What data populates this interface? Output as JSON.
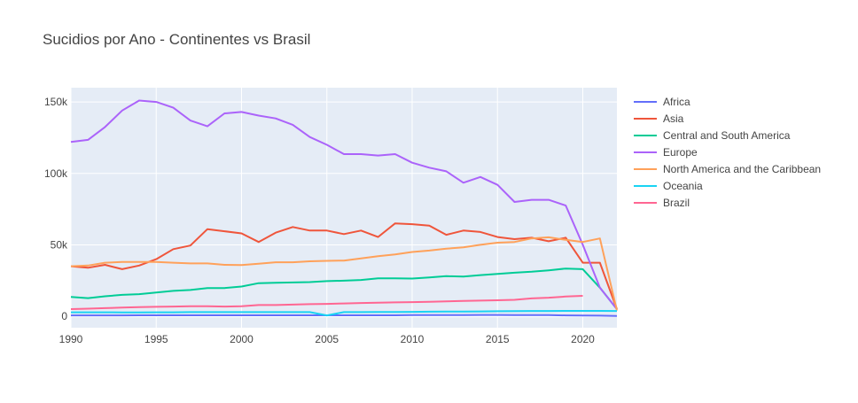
{
  "chart_data": {
    "type": "line",
    "title": "Sucidios por Ano - Continentes vs Brasil",
    "xlabel": "",
    "ylabel": "",
    "xlim": [
      1990,
      2022
    ],
    "ylim": [
      -8000,
      160000
    ],
    "x_ticks": [
      1990,
      1995,
      2000,
      2005,
      2010,
      2015,
      2020
    ],
    "y_ticks": [
      0,
      50000,
      100000,
      150000
    ],
    "y_tick_labels": [
      "0",
      "50k",
      "100k",
      "150k"
    ],
    "grid": true,
    "plot_background": "#e5ecf6",
    "legend_position": "right",
    "series": [
      {
        "name": "Africa",
        "color": "#636efa",
        "x": [
          1990,
          1991,
          1992,
          1993,
          1994,
          1995,
          1996,
          1997,
          1998,
          1999,
          2000,
          2001,
          2002,
          2003,
          2004,
          2005,
          2006,
          2007,
          2008,
          2009,
          2010,
          2011,
          2012,
          2013,
          2014,
          2015,
          2016,
          2017,
          2018,
          2019,
          2020,
          2021,
          2022
        ],
        "values": [
          600,
          600,
          600,
          600,
          650,
          650,
          650,
          700,
          700,
          700,
          700,
          700,
          700,
          700,
          700,
          700,
          700,
          700,
          700,
          700,
          800,
          800,
          800,
          800,
          900,
          900,
          800,
          800,
          800,
          600,
          500,
          400,
          200
        ]
      },
      {
        "name": "Asia",
        "color": "#ef553b",
        "x": [
          1990,
          1991,
          1992,
          1993,
          1994,
          1995,
          1996,
          1997,
          1998,
          1999,
          2000,
          2001,
          2002,
          2003,
          2004,
          2005,
          2006,
          2007,
          2008,
          2009,
          2010,
          2011,
          2012,
          2013,
          2014,
          2015,
          2016,
          2017,
          2018,
          2019,
          2020,
          2021,
          2022
        ],
        "values": [
          35000,
          34000,
          36000,
          33000,
          35500,
          40000,
          47000,
          49500,
          61000,
          59500,
          58000,
          52000,
          58500,
          62500,
          60000,
          60000,
          57500,
          60000,
          55500,
          65000,
          64500,
          63500,
          57000,
          60000,
          59000,
          55500,
          54000,
          55000,
          52500,
          55000,
          37500,
          37500,
          5000
        ]
      },
      {
        "name": "Central and South America",
        "color": "#00cc96",
        "x": [
          1990,
          1991,
          1992,
          1993,
          1994,
          1995,
          1996,
          1997,
          1998,
          1999,
          2000,
          2001,
          2002,
          2003,
          2004,
          2005,
          2006,
          2007,
          2008,
          2009,
          2010,
          2011,
          2012,
          2013,
          2014,
          2015,
          2016,
          2017,
          2018,
          2019,
          2020,
          2021,
          2022
        ],
        "values": [
          13500,
          12700,
          14000,
          15000,
          15500,
          16600,
          17800,
          18400,
          19800,
          19800,
          20800,
          23200,
          23500,
          23700,
          23900,
          24600,
          24900,
          25400,
          26500,
          26500,
          26400,
          27200,
          28100,
          27800,
          28800,
          29700,
          30500,
          31200,
          32200,
          33400,
          33000,
          20000,
          5000
        ]
      },
      {
        "name": "Europe",
        "color": "#ab63fa",
        "x": [
          1990,
          1991,
          1992,
          1993,
          1994,
          1995,
          1996,
          1997,
          1998,
          1999,
          2000,
          2001,
          2002,
          2003,
          2004,
          2005,
          2006,
          2007,
          2008,
          2009,
          2010,
          2011,
          2012,
          2013,
          2014,
          2015,
          2016,
          2017,
          2018,
          2019,
          2020,
          2021,
          2022
        ],
        "values": [
          122000,
          123500,
          132500,
          144000,
          151000,
          150000,
          146000,
          137000,
          133000,
          142000,
          143000,
          140500,
          138500,
          134000,
          125500,
          120000,
          113500,
          113500,
          112500,
          113500,
          107500,
          104000,
          101500,
          93500,
          97500,
          92000,
          80000,
          81500,
          81500,
          77500,
          50000,
          20000,
          5000
        ]
      },
      {
        "name": "North America and the Caribbean",
        "color": "#ffa15a",
        "x": [
          1990,
          1991,
          1992,
          1993,
          1994,
          1995,
          1996,
          1997,
          1998,
          1999,
          2000,
          2001,
          2002,
          2003,
          2004,
          2005,
          2006,
          2007,
          2008,
          2009,
          2010,
          2011,
          2012,
          2013,
          2014,
          2015,
          2016,
          2017,
          2018,
          2019,
          2020,
          2021,
          2022
        ],
        "values": [
          35000,
          35500,
          37500,
          38000,
          38000,
          38000,
          37500,
          37000,
          37000,
          36000,
          35800,
          36800,
          37800,
          37800,
          38500,
          38800,
          39000,
          40500,
          42000,
          43300,
          45000,
          46000,
          47300,
          48300,
          50000,
          51500,
          52000,
          54500,
          55300,
          53500,
          52000,
          54500,
          4000
        ]
      },
      {
        "name": "Oceania",
        "color": "#19d3f3",
        "x": [
          1990,
          1991,
          1992,
          1993,
          1994,
          1995,
          1996,
          1997,
          1998,
          1999,
          2000,
          2001,
          2002,
          2003,
          2004,
          2005,
          2006,
          2007,
          2008,
          2009,
          2010,
          2011,
          2012,
          2013,
          2014,
          2015,
          2016,
          2017,
          2018,
          2019,
          2020,
          2021,
          2022
        ],
        "values": [
          2800,
          2800,
          2800,
          2700,
          2700,
          2800,
          2800,
          2900,
          2900,
          2900,
          2900,
          2900,
          2900,
          2900,
          2900,
          600,
          2900,
          2900,
          3000,
          3000,
          3100,
          3200,
          3300,
          3300,
          3400,
          3500,
          3600,
          3700,
          3700,
          3800,
          3800,
          3800,
          3700
        ]
      },
      {
        "name": "Brazil",
        "color": "#ff6692",
        "x": [
          1990,
          1991,
          1992,
          1993,
          1994,
          1995,
          1996,
          1997,
          1998,
          1999,
          2000,
          2001,
          2002,
          2003,
          2004,
          2005,
          2006,
          2007,
          2008,
          2009,
          2010,
          2011,
          2012,
          2013,
          2014,
          2015,
          2016,
          2017,
          2018,
          2019,
          2020
        ],
        "values": [
          5000,
          5300,
          5700,
          6100,
          6400,
          6600,
          6800,
          7000,
          7000,
          6800,
          7000,
          7900,
          7900,
          8200,
          8500,
          8700,
          9000,
          9300,
          9500,
          9700,
          9900,
          10100,
          10500,
          10700,
          11000,
          11200,
          11500,
          12500,
          13000,
          13800,
          14300
        ]
      }
    ]
  }
}
